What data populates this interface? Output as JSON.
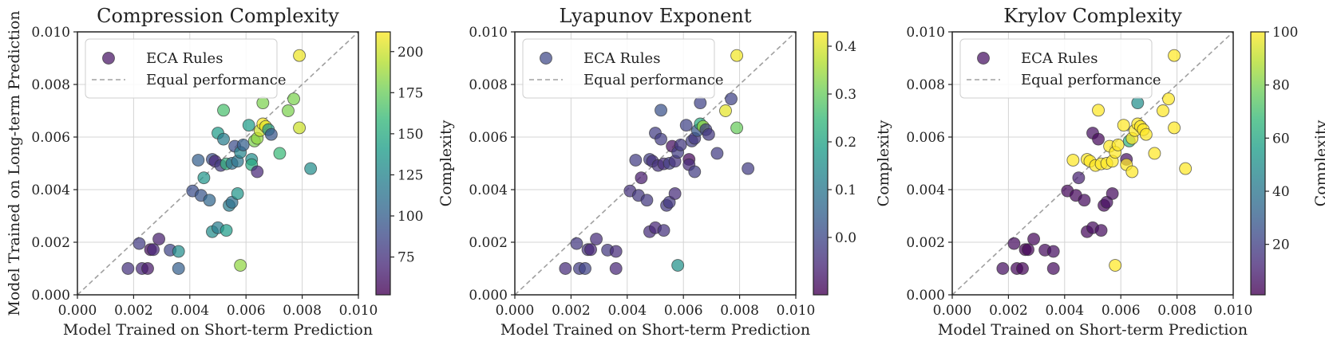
{
  "chart_data": [
    {
      "type": "scatter",
      "title": "Compression Complexity",
      "xlabel": "Model Trained on Short-term Prediction",
      "ylabel": "Model Trained on Long-term Prediction",
      "show_ylabel": true,
      "xlim": [
        0,
        0.01
      ],
      "ylim": [
        0,
        0.01
      ],
      "xticks": [
        "0.000",
        "0.002",
        "0.004",
        "0.006",
        "0.008",
        "0.010"
      ],
      "yticks": [
        "0.000",
        "0.002",
        "0.004",
        "0.006",
        "0.008",
        "0.010"
      ],
      "grid": true,
      "legend": {
        "location": "upper-left",
        "entries": [
          "ECA Rules",
          "Equal performance"
        ],
        "marker_value": 60
      },
      "colorbar": {
        "label": "Complexity",
        "range": [
          52,
          212
        ],
        "ticks": [
          75,
          100,
          125,
          150,
          175,
          200
        ],
        "tick_labels": [
          "75",
          "100",
          "125",
          "150",
          "175",
          "200"
        ]
      },
      "colormap": [
        "#440154",
        "#482878",
        "#3e4989",
        "#31688e",
        "#26828e",
        "#1f9e89",
        "#35b779",
        "#6ece58",
        "#b5de2b",
        "#fde725"
      ],
      "points": [
        {
          "x": 0.0018,
          "y": 0.001,
          "c": 75
        },
        {
          "x": 0.0022,
          "y": 0.00195,
          "c": 80
        },
        {
          "x": 0.0023,
          "y": 0.001,
          "c": 70
        },
        {
          "x": 0.0025,
          "y": 0.001,
          "c": 62
        },
        {
          "x": 0.0026,
          "y": 0.00172,
          "c": 58
        },
        {
          "x": 0.0027,
          "y": 0.00172,
          "c": 70
        },
        {
          "x": 0.0029,
          "y": 0.00212,
          "c": 65
        },
        {
          "x": 0.0033,
          "y": 0.0017,
          "c": 85
        },
        {
          "x": 0.0036,
          "y": 0.00165,
          "c": 130
        },
        {
          "x": 0.0036,
          "y": 0.001,
          "c": 100
        },
        {
          "x": 0.0041,
          "y": 0.00395,
          "c": 90
        },
        {
          "x": 0.0043,
          "y": 0.00512,
          "c": 100
        },
        {
          "x": 0.0044,
          "y": 0.00378,
          "c": 95
        },
        {
          "x": 0.0045,
          "y": 0.00445,
          "c": 135
        },
        {
          "x": 0.0047,
          "y": 0.0036,
          "c": 105
        },
        {
          "x": 0.0048,
          "y": 0.00515,
          "c": 90
        },
        {
          "x": 0.0048,
          "y": 0.0024,
          "c": 130
        },
        {
          "x": 0.0049,
          "y": 0.00508,
          "c": 70
        },
        {
          "x": 0.005,
          "y": 0.00255,
          "c": 120
        },
        {
          "x": 0.005,
          "y": 0.00615,
          "c": 140
        },
        {
          "x": 0.0051,
          "y": 0.00492,
          "c": 80
        },
        {
          "x": 0.0052,
          "y": 0.00702,
          "c": 165
        },
        {
          "x": 0.0052,
          "y": 0.00592,
          "c": 120
        },
        {
          "x": 0.0053,
          "y": 0.00498,
          "c": 155
        },
        {
          "x": 0.0053,
          "y": 0.00245,
          "c": 140
        },
        {
          "x": 0.0054,
          "y": 0.0034,
          "c": 120
        },
        {
          "x": 0.0055,
          "y": 0.005,
          "c": 110
        },
        {
          "x": 0.0055,
          "y": 0.00352,
          "c": 110
        },
        {
          "x": 0.0056,
          "y": 0.00565,
          "c": 90
        },
        {
          "x": 0.0057,
          "y": 0.00508,
          "c": 115
        },
        {
          "x": 0.0057,
          "y": 0.00385,
          "c": 135
        },
        {
          "x": 0.0058,
          "y": 0.00112,
          "c": 185
        },
        {
          "x": 0.0058,
          "y": 0.00542,
          "c": 125
        },
        {
          "x": 0.0059,
          "y": 0.0057,
          "c": 100
        },
        {
          "x": 0.0061,
          "y": 0.00645,
          "c": 140
        },
        {
          "x": 0.0062,
          "y": 0.00515,
          "c": 130
        },
        {
          "x": 0.0062,
          "y": 0.00495,
          "c": 150
        },
        {
          "x": 0.0063,
          "y": 0.00585,
          "c": 180
        },
        {
          "x": 0.0064,
          "y": 0.00595,
          "c": 185
        },
        {
          "x": 0.0064,
          "y": 0.00468,
          "c": 70
        },
        {
          "x": 0.0065,
          "y": 0.00625,
          "c": 200
        },
        {
          "x": 0.0066,
          "y": 0.0065,
          "c": 210
        },
        {
          "x": 0.0066,
          "y": 0.0073,
          "c": 180
        },
        {
          "x": 0.0067,
          "y": 0.0064,
          "c": 205
        },
        {
          "x": 0.0068,
          "y": 0.00628,
          "c": 135
        },
        {
          "x": 0.0069,
          "y": 0.0061,
          "c": 95
        },
        {
          "x": 0.0072,
          "y": 0.00538,
          "c": 160
        },
        {
          "x": 0.0075,
          "y": 0.007,
          "c": 180
        },
        {
          "x": 0.0077,
          "y": 0.00745,
          "c": 180
        },
        {
          "x": 0.0079,
          "y": 0.00635,
          "c": 200
        },
        {
          "x": 0.0079,
          "y": 0.0091,
          "c": 208
        },
        {
          "x": 0.0083,
          "y": 0.0048,
          "c": 130
        }
      ]
    },
    {
      "type": "scatter",
      "title": "Lyapunov Exponent",
      "xlabel": "Model Trained on Short-term Prediction",
      "ylabel": "",
      "show_ylabel": false,
      "xlim": [
        0,
        0.01
      ],
      "ylim": [
        0,
        0.01
      ],
      "xticks": [
        "0.000",
        "0.002",
        "0.004",
        "0.006",
        "0.008",
        "0.010"
      ],
      "yticks": [
        "0.000",
        "0.002",
        "0.004",
        "0.006",
        "0.008",
        "0.010"
      ],
      "grid": true,
      "legend": {
        "location": "upper-left",
        "entries": [
          "ECA Rules",
          "Equal performance"
        ],
        "marker_value": 0.0
      },
      "colorbar": {
        "label": "Complexity",
        "range": [
          -0.12,
          0.43
        ],
        "ticks": [
          0.0,
          0.1,
          0.2,
          0.3,
          0.4
        ],
        "tick_labels": [
          "0.0",
          "0.1",
          "0.2",
          "0.3",
          "0.4"
        ]
      },
      "colormap": [
        "#440154",
        "#482878",
        "#3e4989",
        "#31688e",
        "#26828e",
        "#1f9e89",
        "#35b779",
        "#6ece58",
        "#b5de2b",
        "#fde725"
      ],
      "points": [
        {
          "x": 0.0018,
          "y": 0.001,
          "c": -0.05
        },
        {
          "x": 0.0022,
          "y": 0.00195,
          "c": -0.03
        },
        {
          "x": 0.0023,
          "y": 0.001,
          "c": -0.02
        },
        {
          "x": 0.0025,
          "y": 0.001,
          "c": -0.01
        },
        {
          "x": 0.0026,
          "y": 0.00172,
          "c": -0.04
        },
        {
          "x": 0.0027,
          "y": 0.00172,
          "c": -0.06
        },
        {
          "x": 0.0029,
          "y": 0.00212,
          "c": -0.05
        },
        {
          "x": 0.0033,
          "y": 0.0017,
          "c": -0.03
        },
        {
          "x": 0.0036,
          "y": 0.00165,
          "c": -0.05
        },
        {
          "x": 0.0036,
          "y": 0.001,
          "c": -0.06
        },
        {
          "x": 0.0041,
          "y": 0.00395,
          "c": -0.04
        },
        {
          "x": 0.0043,
          "y": 0.00512,
          "c": -0.02
        },
        {
          "x": 0.0044,
          "y": 0.00378,
          "c": -0.03
        },
        {
          "x": 0.0045,
          "y": 0.00445,
          "c": -0.08
        },
        {
          "x": 0.0047,
          "y": 0.0036,
          "c": -0.03
        },
        {
          "x": 0.0048,
          "y": 0.00515,
          "c": -0.02
        },
        {
          "x": 0.0048,
          "y": 0.0024,
          "c": -0.05
        },
        {
          "x": 0.0049,
          "y": 0.00508,
          "c": -0.04
        },
        {
          "x": 0.005,
          "y": 0.00255,
          "c": -0.06
        },
        {
          "x": 0.005,
          "y": 0.00615,
          "c": -0.02
        },
        {
          "x": 0.0051,
          "y": 0.00492,
          "c": -0.04
        },
        {
          "x": 0.0052,
          "y": 0.00702,
          "c": 0.02
        },
        {
          "x": 0.0052,
          "y": 0.00592,
          "c": -0.02
        },
        {
          "x": 0.0053,
          "y": 0.00498,
          "c": -0.05
        },
        {
          "x": 0.0053,
          "y": 0.00245,
          "c": -0.04
        },
        {
          "x": 0.0054,
          "y": 0.0034,
          "c": -0.03
        },
        {
          "x": 0.0055,
          "y": 0.005,
          "c": -0.02
        },
        {
          "x": 0.0055,
          "y": 0.00352,
          "c": -0.03
        },
        {
          "x": 0.0056,
          "y": 0.00565,
          "c": -0.1
        },
        {
          "x": 0.0057,
          "y": 0.00508,
          "c": -0.04
        },
        {
          "x": 0.0057,
          "y": 0.00385,
          "c": -0.05
        },
        {
          "x": 0.0058,
          "y": 0.00112,
          "c": 0.16
        },
        {
          "x": 0.0058,
          "y": 0.00542,
          "c": -0.02
        },
        {
          "x": 0.0059,
          "y": 0.0057,
          "c": -0.03
        },
        {
          "x": 0.0061,
          "y": 0.00645,
          "c": -0.01
        },
        {
          "x": 0.0062,
          "y": 0.00515,
          "c": -0.11
        },
        {
          "x": 0.0062,
          "y": 0.00495,
          "c": -0.05
        },
        {
          "x": 0.0063,
          "y": 0.00585,
          "c": -0.02
        },
        {
          "x": 0.0064,
          "y": 0.00595,
          "c": -0.03
        },
        {
          "x": 0.0064,
          "y": 0.00468,
          "c": -0.02
        },
        {
          "x": 0.0065,
          "y": 0.00625,
          "c": 0.03
        },
        {
          "x": 0.0066,
          "y": 0.0065,
          "c": 0.22
        },
        {
          "x": 0.0066,
          "y": 0.0073,
          "c": -0.01
        },
        {
          "x": 0.0067,
          "y": 0.0064,
          "c": 0.34
        },
        {
          "x": 0.0068,
          "y": 0.00628,
          "c": -0.02
        },
        {
          "x": 0.0069,
          "y": 0.0061,
          "c": -0.03
        },
        {
          "x": 0.0072,
          "y": 0.00538,
          "c": -0.02
        },
        {
          "x": 0.0075,
          "y": 0.007,
          "c": 0.41
        },
        {
          "x": 0.0077,
          "y": 0.00745,
          "c": -0.01
        },
        {
          "x": 0.0079,
          "y": 0.00635,
          "c": 0.3
        },
        {
          "x": 0.0079,
          "y": 0.0091,
          "c": 0.42
        },
        {
          "x": 0.0083,
          "y": 0.0048,
          "c": -0.02
        }
      ]
    },
    {
      "type": "scatter",
      "title": "Krylov Complexity",
      "xlabel": "Model Trained on Short-term Prediction",
      "ylabel": "",
      "show_ylabel": false,
      "xlim": [
        0,
        0.01
      ],
      "ylim": [
        0,
        0.01
      ],
      "xticks": [
        "0.000",
        "0.002",
        "0.004",
        "0.006",
        "0.008",
        "0.010"
      ],
      "yticks": [
        "0.000",
        "0.002",
        "0.004",
        "0.006",
        "0.008",
        "0.010"
      ],
      "grid": true,
      "legend": {
        "location": "upper-left",
        "entries": [
          "ECA Rules",
          "Equal performance"
        ],
        "marker_value": 5
      },
      "colorbar": {
        "label": "Complexity",
        "range": [
          1,
          100
        ],
        "ticks": [
          20,
          40,
          60,
          80,
          100
        ],
        "tick_labels": [
          "20",
          "40",
          "60",
          "80",
          "100"
        ]
      },
      "colormap": [
        "#440154",
        "#482878",
        "#3e4989",
        "#31688e",
        "#26828e",
        "#1f9e89",
        "#35b779",
        "#6ece58",
        "#b5de2b",
        "#fde725"
      ],
      "points": [
        {
          "x": 0.0018,
          "y": 0.001,
          "c": 5
        },
        {
          "x": 0.0022,
          "y": 0.00195,
          "c": 4
        },
        {
          "x": 0.0023,
          "y": 0.001,
          "c": 3
        },
        {
          "x": 0.0025,
          "y": 0.001,
          "c": 2
        },
        {
          "x": 0.0026,
          "y": 0.00172,
          "c": 1
        },
        {
          "x": 0.0027,
          "y": 0.00172,
          "c": 2
        },
        {
          "x": 0.0029,
          "y": 0.00212,
          "c": 3
        },
        {
          "x": 0.0033,
          "y": 0.0017,
          "c": 4
        },
        {
          "x": 0.0036,
          "y": 0.00165,
          "c": 5
        },
        {
          "x": 0.0036,
          "y": 0.001,
          "c": 4
        },
        {
          "x": 0.0041,
          "y": 0.00395,
          "c": 3
        },
        {
          "x": 0.0043,
          "y": 0.00512,
          "c": 100
        },
        {
          "x": 0.0044,
          "y": 0.00378,
          "c": 3
        },
        {
          "x": 0.0045,
          "y": 0.00445,
          "c": 10
        },
        {
          "x": 0.0047,
          "y": 0.0036,
          "c": 4
        },
        {
          "x": 0.0048,
          "y": 0.00515,
          "c": 100
        },
        {
          "x": 0.0048,
          "y": 0.0024,
          "c": 3
        },
        {
          "x": 0.0049,
          "y": 0.00508,
          "c": 100
        },
        {
          "x": 0.005,
          "y": 0.00255,
          "c": 4
        },
        {
          "x": 0.005,
          "y": 0.00615,
          "c": 5
        },
        {
          "x": 0.0051,
          "y": 0.00492,
          "c": 100
        },
        {
          "x": 0.0052,
          "y": 0.00702,
          "c": 100
        },
        {
          "x": 0.0052,
          "y": 0.00592,
          "c": 3
        },
        {
          "x": 0.0053,
          "y": 0.00498,
          "c": 100
        },
        {
          "x": 0.0053,
          "y": 0.00245,
          "c": 4
        },
        {
          "x": 0.0054,
          "y": 0.0034,
          "c": 3
        },
        {
          "x": 0.0055,
          "y": 0.005,
          "c": 100
        },
        {
          "x": 0.0055,
          "y": 0.00352,
          "c": 5
        },
        {
          "x": 0.0056,
          "y": 0.00565,
          "c": 100
        },
        {
          "x": 0.0057,
          "y": 0.00508,
          "c": 100
        },
        {
          "x": 0.0057,
          "y": 0.00385,
          "c": 4
        },
        {
          "x": 0.0058,
          "y": 0.00112,
          "c": 100
        },
        {
          "x": 0.0058,
          "y": 0.00542,
          "c": 100
        },
        {
          "x": 0.0059,
          "y": 0.0057,
          "c": 100
        },
        {
          "x": 0.0061,
          "y": 0.00645,
          "c": 100
        },
        {
          "x": 0.0062,
          "y": 0.00515,
          "c": 6
        },
        {
          "x": 0.0062,
          "y": 0.00495,
          "c": 100
        },
        {
          "x": 0.0063,
          "y": 0.00585,
          "c": 65
        },
        {
          "x": 0.0064,
          "y": 0.00595,
          "c": 100
        },
        {
          "x": 0.0064,
          "y": 0.00468,
          "c": 100
        },
        {
          "x": 0.0065,
          "y": 0.00625,
          "c": 100
        },
        {
          "x": 0.0066,
          "y": 0.0065,
          "c": 100
        },
        {
          "x": 0.0066,
          "y": 0.0073,
          "c": 50
        },
        {
          "x": 0.0067,
          "y": 0.0064,
          "c": 100
        },
        {
          "x": 0.0068,
          "y": 0.00628,
          "c": 100
        },
        {
          "x": 0.0069,
          "y": 0.0061,
          "c": 100
        },
        {
          "x": 0.0072,
          "y": 0.00538,
          "c": 100
        },
        {
          "x": 0.0075,
          "y": 0.007,
          "c": 100
        },
        {
          "x": 0.0077,
          "y": 0.00745,
          "c": 100
        },
        {
          "x": 0.0079,
          "y": 0.00635,
          "c": 100
        },
        {
          "x": 0.0079,
          "y": 0.0091,
          "c": 100
        },
        {
          "x": 0.0083,
          "y": 0.0048,
          "c": 100
        }
      ]
    }
  ]
}
